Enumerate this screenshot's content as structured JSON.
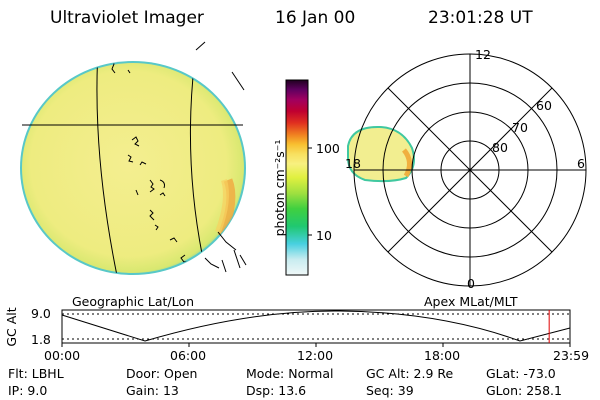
{
  "header": {
    "instrument": "Ultraviolet Imager",
    "date": "16 Jan 00",
    "time": "23:01:28 UT"
  },
  "left_panel": {
    "label": "Geographic Lat/Lon"
  },
  "right_panel": {
    "label": "Apex MLat/MLT",
    "mlt_labels": {
      "top": "12",
      "left": "18",
      "right": "6",
      "bottom": "0"
    },
    "lat_labels": [
      "60",
      "70",
      "80"
    ]
  },
  "colorbar": {
    "unit": "photon cm⁻²s⁻¹",
    "ticks": [
      "100",
      "10"
    ],
    "colors": [
      "#f0f8f8",
      "#c8ecf0",
      "#48d0e0",
      "#20c870",
      "#40d040",
      "#a0e040",
      "#e0f040",
      "#f8f080",
      "#f8e060",
      "#f8c030",
      "#f08020",
      "#e03020",
      "#c00030",
      "#a00060",
      "#600060",
      "#200020"
    ]
  },
  "timeline": {
    "axis_label": "GC Alt",
    "y_ticks": [
      "9.0",
      "1.8"
    ],
    "x_ticks": [
      "00:00",
      "06:00",
      "12:00",
      "18:00",
      "23:59"
    ],
    "cursor_fraction": 0.959,
    "cursor_color": "#e00000"
  },
  "info": {
    "row1": [
      {
        "label": "Flt:",
        "value": "LBHL"
      },
      {
        "label": "Door:",
        "value": "Open"
      },
      {
        "label": "Mode:",
        "value": "Normal"
      },
      {
        "label": "GC Alt:",
        "value": "2.9 Re"
      },
      {
        "label": "GLat:",
        "value": "-73.0"
      }
    ],
    "row2": [
      {
        "label": "IP:",
        "value": "9.0"
      },
      {
        "label": "Gain:",
        "value": "13"
      },
      {
        "label": "Dsp:",
        "value": "13.6"
      },
      {
        "label": "Seq:",
        "value": "39"
      },
      {
        "label": "GLon:",
        "value": "258.1"
      }
    ]
  },
  "colors": {
    "disk_fill": "#f2ee8c",
    "disk_edge": "#40c8c0",
    "aurora": "#f0b040",
    "line": "#000000"
  }
}
